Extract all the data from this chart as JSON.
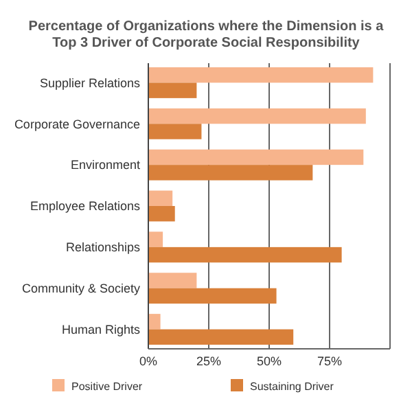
{
  "chart_data": {
    "type": "bar",
    "orientation": "horizontal",
    "title": "Percentage of Organizations where the Dimension is a Top 3 Driver of Corporate Social Responsibility",
    "categories": [
      "Supplier Relations",
      "Corporate Governance",
      "Environment",
      "Employee Relations",
      "Relationships",
      "Community & Society",
      "Human Rights"
    ],
    "series": [
      {
        "name": "Positive Driver",
        "color": "#f7b48c",
        "values": [
          93,
          90,
          89,
          10,
          6,
          20,
          5
        ]
      },
      {
        "name": "Sustaining Driver",
        "color": "#d9803a",
        "values": [
          20,
          22,
          68,
          11,
          80,
          53,
          60
        ]
      }
    ],
    "xlim": [
      0,
      100
    ],
    "xticks": [
      {
        "value": 0,
        "label": "0%"
      },
      {
        "value": 25,
        "label": "25%"
      },
      {
        "value": 50,
        "label": "50%"
      },
      {
        "value": 75,
        "label": "75%"
      }
    ],
    "grid": "x",
    "legend": "bottom"
  }
}
